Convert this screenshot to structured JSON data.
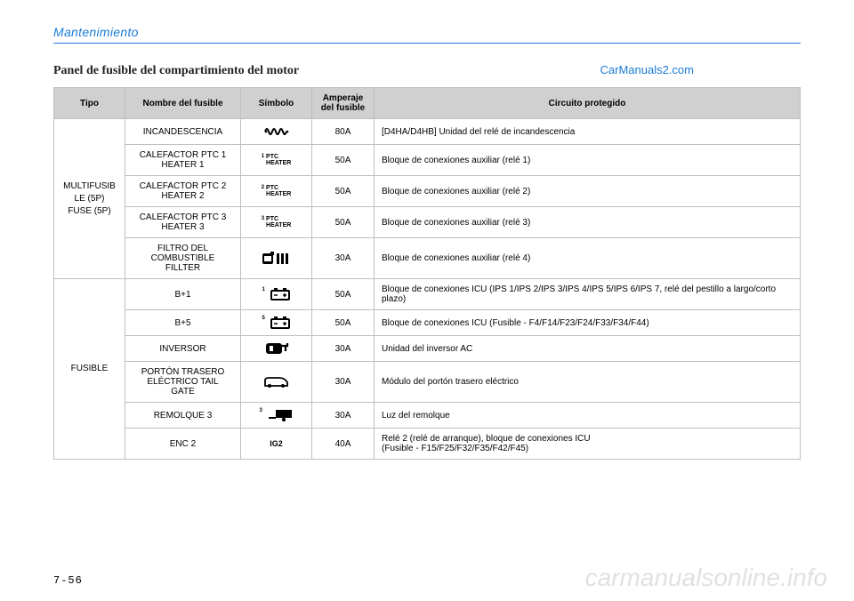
{
  "page": {
    "section_title": "Mantenimiento",
    "panel_title": "Panel de fusible del compartimiento del motor",
    "watermark_link": "CarManuals2.com",
    "page_number": "7-56",
    "big_watermark": "carmanualsonline.info"
  },
  "table": {
    "headers": {
      "tipo": "Tipo",
      "nombre": "Nombre del fusible",
      "simbolo": "Símbolo",
      "amperaje": "Amperaje del fusible",
      "circuito": "Circuito protegido"
    },
    "groups": [
      {
        "tipo": "MULTIFUSIB\nLE (5P)\nFUSE (5P)",
        "rows": [
          {
            "nombre": "INCANDESCENCIA",
            "symbol": "glow",
            "amperaje": "80A",
            "circuito": "[D4HA/D4HB] Unidad del relé de incandescencia"
          },
          {
            "nombre": "CALEFACTOR PTC 1\nHEATER 1",
            "symbol": "ptc",
            "sym_num": "1",
            "amperaje": "50A",
            "circuito": "Bloque de conexiones auxiliar (relé 1)"
          },
          {
            "nombre": "CALEFACTOR PTC 2\nHEATER 2",
            "symbol": "ptc",
            "sym_num": "2",
            "amperaje": "50A",
            "circuito": "Bloque de conexiones auxiliar (relé 2)"
          },
          {
            "nombre": "CALEFACTOR PTC 3\nHEATER 3",
            "symbol": "ptc",
            "sym_num": "3",
            "amperaje": "50A",
            "circuito": "Bloque de conexiones auxiliar (relé 3)"
          },
          {
            "nombre": "FILTRO DEL\nCOMBUSTIBLE\nFILLTER",
            "symbol": "fuelfilter",
            "amperaje": "30A",
            "circuito": "Bloque de conexiones auxiliar (relé 4)"
          }
        ]
      },
      {
        "tipo": "FUSIBLE",
        "rows": [
          {
            "nombre": "B+1",
            "symbol": "battery",
            "sym_num": "1",
            "amperaje": "50A",
            "circuito": "Bloque de conexiones ICU (IPS 1/IPS 2/IPS 3/IPS 4/IPS 5/IPS 6/IPS 7, relé del pestillo a largo/corto plazo)"
          },
          {
            "nombre": "B+5",
            "symbol": "battery",
            "sym_num": "5",
            "amperaje": "50A",
            "circuito": "Bloque de conexiones ICU (Fusible - F4/F14/F23/F24/F33/F34/F44)"
          },
          {
            "nombre": "INVERSOR",
            "symbol": "inverter",
            "amperaje": "30A",
            "circuito": "Unidad del inversor AC"
          },
          {
            "nombre": "PORTÓN TRASERO\nELÉCTRICO TAIL\nGATE",
            "symbol": "tailgate",
            "amperaje": "30A",
            "circuito": "Módulo del portón trasero eléctrico"
          },
          {
            "nombre": "REMOLQUE 3",
            "symbol": "trailer",
            "sym_num": "3",
            "amperaje": "30A",
            "circuito": "Luz del remolque"
          },
          {
            "nombre": "ENC 2",
            "symbol": "ig2",
            "amperaje": "40A",
            "circuito": "Relé 2 (relé de arranque), bloque de conexiones ICU\n(Fusible - F15/F25/F32/F35/F42/F45)"
          }
        ]
      }
    ]
  },
  "symbol_text": {
    "ptc": "PTC\nHEATER",
    "ig2": "IG2"
  },
  "colors": {
    "accent": "#1b7bd6",
    "header_bg": "#d0d0d0",
    "border": "#bfbfbf",
    "watermark": "rgba(0,0,0,0.12)"
  }
}
